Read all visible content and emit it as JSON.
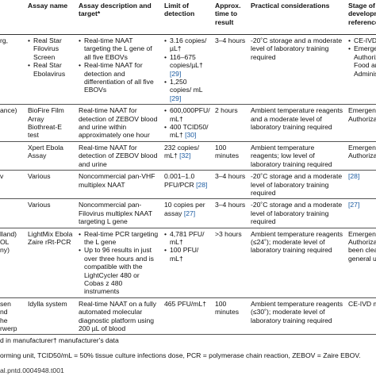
{
  "headers": [
    "",
    "Assay name",
    "Assay description and target*",
    "Limit of detection",
    "Approx. time to result",
    "Practical considerations",
    "Stage of development reference"
  ],
  "rows": [
    {
      "first": "rg,",
      "name": [
        "Real Star Filovirus Screen",
        "Real Star Ebolavirus"
      ],
      "desc": [
        "Real-time NAAT targeting the L gene of all five EBOVs",
        "Real-time NAAT for detection and differentiation of all five EBOVs"
      ],
      "lod": [
        "3.16 copies/ µL†",
        "116–675 copies/µL† [29]",
        "1,250 copies/ mL [29]"
      ],
      "time": "3–4 hours",
      "practical": "-20˚C storage and a moderate level of laboratory training required",
      "stage": [
        "CE-IVD marke",
        "Emergency U Authorization Food and Drug Administration"
      ]
    },
    {
      "first": "ance)",
      "name": "BioFire Film Array Biothreat-E test",
      "desc": "Real-time NAAT for detection of ZEBOV blood and urine within approximately one hour",
      "lod": [
        "600,000PFU/ mL†",
        "400 TCID50/ mL† [30]"
      ],
      "time": "2 hours",
      "practical": "Ambient temperature reagents and a moderate level of laboratory training required",
      "stage": "Emergency U Authorization"
    },
    {
      "first": "",
      "name": "Xpert Ebola Assay",
      "desc": "Real-time NAAT for detection of ZEBOV blood and urine",
      "lod": "232 copies/ mL† [32]",
      "time": "100 minutes",
      "practical": "Ambient temperature reagents; low level of laboratory training required",
      "stage": "Emergency U Authorization"
    },
    {
      "first": "v",
      "name": "Various",
      "desc": "Noncommercial pan-VHF multiplex NAAT",
      "lod": "0.001–1.0 PFU/PCR [28]",
      "time": "3–4 hours",
      "practical": "-20˚C storage and a moderate level of laboratory training required",
      "stage": "[28]"
    },
    {
      "first": "",
      "name": "Various",
      "desc": "Noncommercial pan-Filovirus multiplex NAAT targeting L gene",
      "lod": "10 copies per assay [27]",
      "time": "3–4 hours",
      "practical": "-20˚C storage and a moderate level of laboratory training required",
      "stage": "[27]"
    },
    {
      "first": [
        "lland)",
        "OL",
        "ny)"
      ],
      "name": "LightMix Ebola Zaire rRt-PCR",
      "desc": [
        "Real-time PCR targeting the L gene",
        "Up to 96 results in just over three hours and is compatible with the LightCycler 480 or Cobas z 480 instruments"
      ],
      "lod": [
        "4,781 PFU/ mL†",
        "100 PFU/ mL†"
      ],
      "time": ">3 hours",
      "practical": "Ambient temperature reagents (≤24˚); moderate level of laboratory training required",
      "stage": "Emergency U Authorization not been cleared for general us"
    },
    {
      "first": [
        "sen",
        "nd",
        "he",
        "rwerp"
      ],
      "name": "Idylla system",
      "desc": "Real-time NAAT on a fully automated molecular diagnostic platform using 200 µL of blood",
      "lod": "465 PFU/mL†",
      "time": "100 minutes",
      "practical": "Ambient temperature reagents (≤30˚); moderate level of laboratory training required",
      "stage": "CE-IVD marke"
    }
  ],
  "footnotes": [
    "d in manufacturer† manufacturer's data",
    "orming unit, TCID50/mL = 50% tissue culture infections dose, PCR = polymerase chain reaction, ZEBOV = Zaire EBOV.",
    "al.pntd.0004948.t001"
  ]
}
